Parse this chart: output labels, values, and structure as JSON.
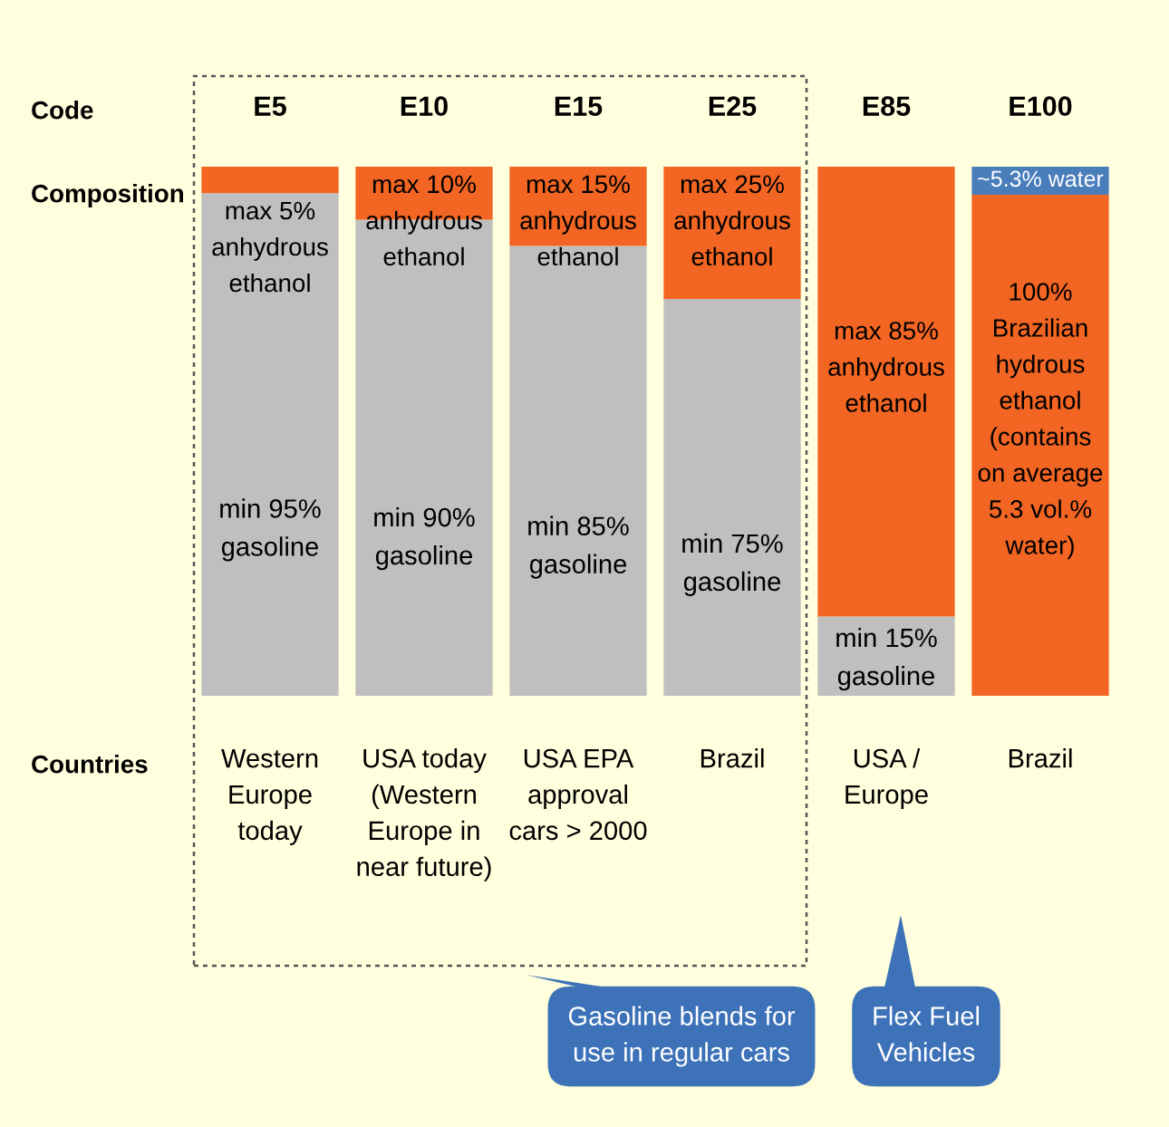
{
  "chart_data": {
    "type": "bar",
    "stacked": true,
    "categories": [
      "E5",
      "E10",
      "E15",
      "E25",
      "E85",
      "E100"
    ],
    "series": [
      {
        "color": "#bfbfbf",
        "values": [
          95,
          90,
          85,
          75,
          15,
          0
        ],
        "value_labels": [
          "min 95%\ngasoline",
          "min 90%\ngasoline",
          "min 85%\ngasoline",
          "min 75%\ngasoline",
          "min 15%\ngasoline",
          null
        ]
      },
      {
        "color": "#f26522",
        "values": [
          5,
          10,
          15,
          25,
          85,
          94.7
        ],
        "value_labels": [
          "max 5%\nanhydrous\nethanol",
          "max 10%\nanhydrous\nethanol",
          "max 15%\nanhydrous\nethanol",
          "max 25%\nanhydrous\nethanol",
          "max 85%\nanhydrous\nethanol",
          null
        ]
      },
      {
        "color": "#4a7ebb",
        "values": [
          0,
          0,
          0,
          0,
          0,
          5.3
        ],
        "value_labels": [
          null,
          null,
          null,
          null,
          null,
          "~5.3% water"
        ]
      }
    ],
    "ylim": [
      0,
      100
    ],
    "tick_labels": "x",
    "grid": false,
    "annotations": [
      "Code",
      "Composition",
      "Countries",
      "Western\nEurope\ntoday",
      "USA today\n(Western\nEurope in\nnear future)",
      "USA EPA\napproval\ncars > 2000",
      "Brazil",
      "USA /\nEurope",
      "Brazil",
      "Gasoline blends for\nuse in regular cars",
      "Flex Fuel\nVehicles",
      "100%\nBrazilian\nhydrous\nethanol\n(contains\non average\n5.3 vol.%\nwater)"
    ]
  }
}
